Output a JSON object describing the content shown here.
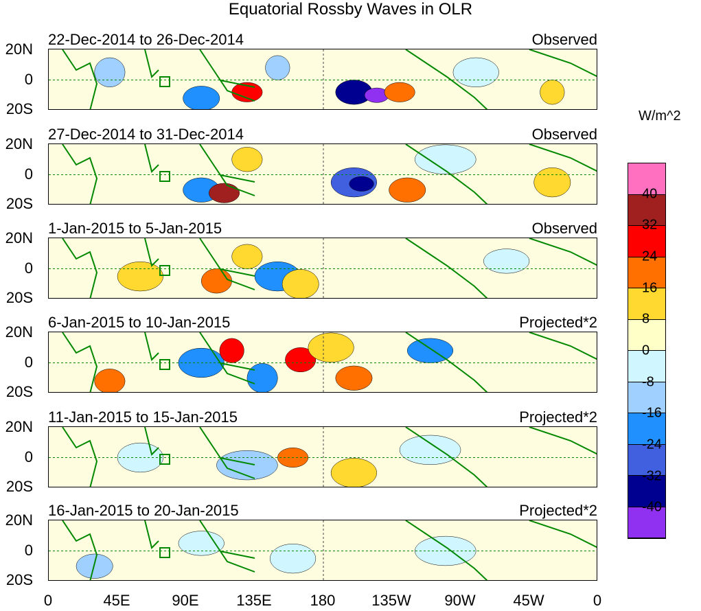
{
  "title": "Equatorial Rossby Waves in OLR",
  "panels": [
    {
      "dates": "22-Dec-2014 to 26-Dec-2014",
      "type": "Observed"
    },
    {
      "dates": "27-Dec-2014 to 31-Dec-2014",
      "type": "Observed"
    },
    {
      "dates": "1-Jan-2015 to 5-Jan-2015",
      "type": "Observed"
    },
    {
      "dates": "6-Jan-2015 to 10-Jan-2015",
      "type": "Projected*2"
    },
    {
      "dates": "11-Jan-2015 to 15-Jan-2015",
      "type": "Projected*2"
    },
    {
      "dates": "16-Jan-2015 to 20-Jan-2015",
      "type": "Projected*2"
    }
  ],
  "lat_labels": [
    "20N",
    "0",
    "20S"
  ],
  "lon_labels": [
    "0",
    "45E",
    "90E",
    "135E",
    "180",
    "135W",
    "90W",
    "45W",
    "0"
  ],
  "colorbar": {
    "units": "W/m^2",
    "labels": [
      "40",
      "32",
      "24",
      "16",
      "8",
      "0",
      "-8",
      "-16",
      "-24",
      "-32",
      "-40"
    ],
    "colors": [
      "#ff70c0",
      "#a02020",
      "#ff0000",
      "#ff7000",
      "#ffd830",
      "#ffffc8",
      "#d0f6ff",
      "#a0d0ff",
      "#2090ff",
      "#4060e0",
      "#000090",
      "#9030f0"
    ]
  }
}
